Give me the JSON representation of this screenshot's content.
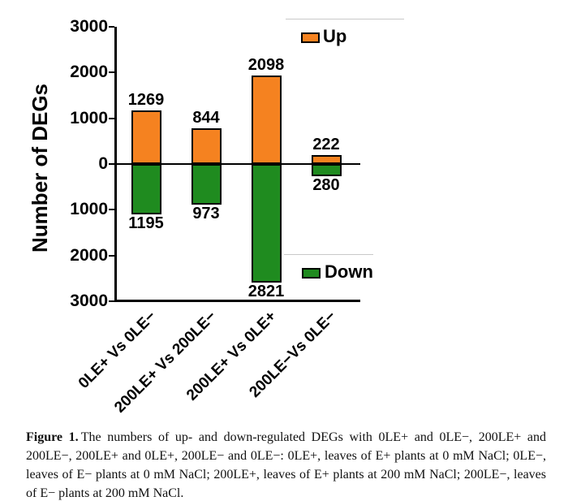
{
  "figure": {
    "caption_label": "Figure 1.",
    "caption_text": "The numbers of up- and down-regulated DEGs with 0LE+ and 0LE−, 200LE+ and 200LE−, 200LE+ and 0LE+, 200LE− and 0LE−: 0LE+, leaves of E+ plants at 0 mM NaCl; 0LE−, leaves of E− plants at 0 mM NaCl; 200LE+, leaves of E+ plants at 200 mM NaCl; 200LE−, leaves of E− plants at 200 mM NaCl."
  },
  "chart_data": {
    "type": "bar",
    "subtype": "diverging-vertical",
    "title": "",
    "xlabel": "",
    "ylabel": "Number of DEGs",
    "categories": [
      "0LE+ Vs 0LE−",
      "200LE+ Vs 200LE−",
      "200LE+ Vs 0LE+",
      "200LE−Vs 0LE−"
    ],
    "series": [
      {
        "name": "Up",
        "direction": "up",
        "color": "#F58220",
        "values": [
          1269,
          844,
          2098,
          222
        ]
      },
      {
        "name": "Down",
        "direction": "down",
        "color": "#1F8B1F",
        "values": [
          1195,
          973,
          2821,
          280
        ]
      }
    ],
    "ytick_labels": [
      "3000",
      "2000",
      "1000",
      "0",
      "1000",
      "2000",
      "3000"
    ],
    "ylim": [
      -3000,
      3000
    ],
    "grid": false,
    "legend": {
      "up_label": "Up",
      "down_label": "Down",
      "up_position": "top-right-inside",
      "down_position": "bottom-right-inside"
    }
  }
}
